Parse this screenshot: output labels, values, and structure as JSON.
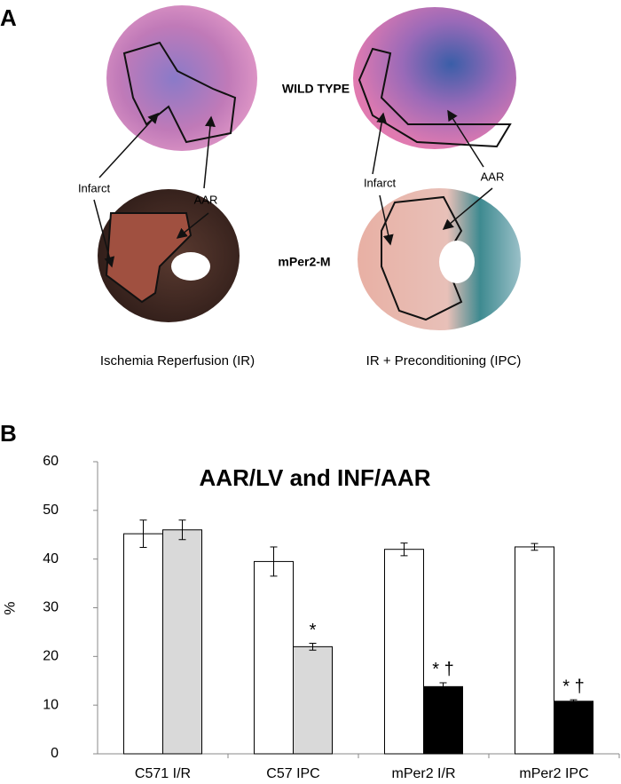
{
  "panel_a": {
    "label": "A",
    "row_labels": [
      "WILD TYPE",
      "mPer2-M"
    ],
    "left_labels": {
      "infarct": "Infarct",
      "aar": "AAR",
      "caption": "Ischemia Reperfusion (IR)"
    },
    "right_labels": {
      "infarct": "Infarct",
      "aar": "AAR",
      "caption": "IR + Preconditioning (IPC)"
    }
  },
  "panel_b": {
    "label": "B"
  },
  "chart_data": {
    "type": "bar",
    "title": "AAR/LV and INF/AAR",
    "y_label": "%",
    "categories": [
      "C571 I/R",
      "C57 IPC",
      "mPer2 I/R",
      "mPer2 IPC"
    ],
    "series": [
      {
        "colors": [
          "#ffffff",
          "#ffffff",
          "#ffffff",
          "#ffffff"
        ],
        "values": [
          45.2,
          39.5,
          42,
          42.5
        ],
        "errors": [
          2.8,
          3,
          1.3,
          0.7
        ]
      },
      {
        "colors": [
          "#d9d9d9",
          "#d9d9d9",
          "#000000",
          "#000000"
        ],
        "values": [
          46,
          22,
          13.8,
          10.8
        ],
        "errors": [
          2,
          0.7,
          0.8,
          0.3
        ]
      }
    ],
    "annotations": [
      {
        "text": "*",
        "category": "C57 IPC"
      },
      {
        "text": "* †",
        "category": "mPer2 I/R"
      },
      {
        "text": "* †",
        "category": "mPer2 IPC"
      }
    ],
    "ylim": [
      0,
      60
    ],
    "yticks": [
      0,
      10,
      20,
      30,
      40,
      50,
      60
    ],
    "grid": false
  }
}
